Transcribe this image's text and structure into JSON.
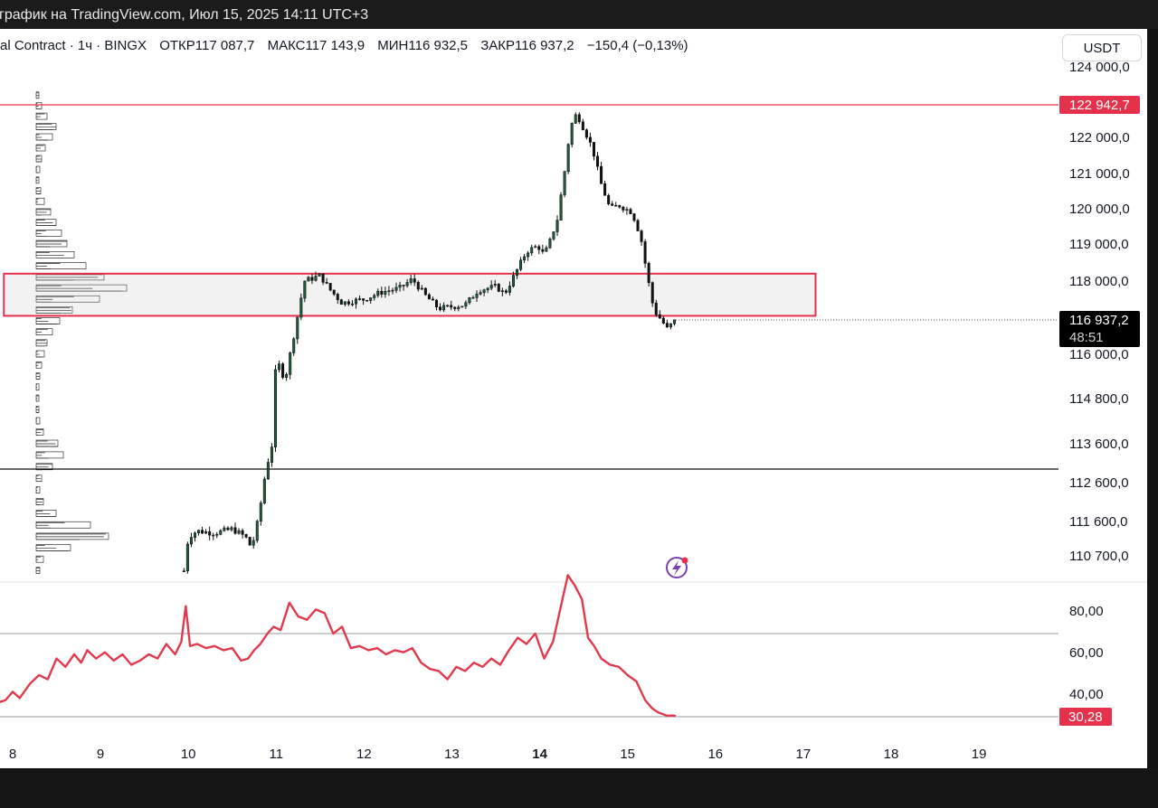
{
  "window": {
    "title": "график на TradingView.com, Июл 15, 2025 14:11 UTC+3"
  },
  "legend": {
    "symbol": "al Contract · 1ч · BINGX",
    "open_label": "ОТКР",
    "open": "117 087,7",
    "high_label": "МАКС",
    "high": "117 143,9",
    "low_label": "МИН",
    "low": "116 932,5",
    "close_label": "ЗАКР",
    "close": "116 937,2",
    "change": "−150,4 (−0,13%)"
  },
  "currency_button": "USDT",
  "colors": {
    "price_box": "#e5314b",
    "rsi_line": "#e03a4e",
    "candle_up": "#1f5f3c",
    "candle_down": "#111111"
  },
  "icons": {
    "alert": "lightning-alert-icon"
  },
  "chart_data": [
    {
      "type": "candlestick",
      "ylim": [
        110100,
        124300
      ],
      "price_ticks": [
        "124 000,0",
        "122 000,0",
        "121 000,0",
        "120 000,0",
        "119 000,0",
        "118 000,0",
        "116 000,0",
        "114 800,0",
        "113 600,0",
        "112 600,0",
        "111 600,0",
        "110 700,0"
      ],
      "price_tick_values": [
        124000,
        122000,
        121000,
        120000,
        119000,
        118000,
        116000,
        114800,
        113600,
        112600,
        111600,
        110700
      ],
      "x_ticks": [
        {
          "label": "8",
          "day": 8
        },
        {
          "label": "9",
          "day": 9
        },
        {
          "label": "10",
          "day": 10
        },
        {
          "label": "11",
          "day": 11
        },
        {
          "label": "12",
          "day": 12
        },
        {
          "label": "13",
          "day": 13
        },
        {
          "label": "14",
          "day": 14,
          "bold": true
        },
        {
          "label": "15",
          "day": 15
        },
        {
          "label": "16",
          "day": 16
        },
        {
          "label": "17",
          "day": 17
        },
        {
          "label": "18",
          "day": 18
        },
        {
          "label": "19",
          "day": 19
        }
      ],
      "resistance_line": {
        "value": 122942.7,
        "label": "122 942,7"
      },
      "support_line": {
        "value": 112900
      },
      "zone": {
        "top": 118200,
        "bottom": 117050,
        "x_start_day": 7.9,
        "x_end_day": 17.14
      },
      "last_price": {
        "value": 116937.2,
        "label": "116 937,2",
        "countdown": "48:51"
      },
      "price_path": [
        [
          9.95,
          110300
        ],
        [
          10.0,
          111200
        ],
        [
          10.1,
          111350
        ],
        [
          10.3,
          111300
        ],
        [
          10.5,
          111400
        ],
        [
          10.65,
          111200
        ],
        [
          10.72,
          110900
        ],
        [
          10.8,
          111700
        ],
        [
          10.88,
          112900
        ],
        [
          10.95,
          113550
        ],
        [
          11.0,
          115900
        ],
        [
          11.1,
          115300
        ],
        [
          11.2,
          116500
        ],
        [
          11.32,
          118000
        ],
        [
          11.5,
          118150
        ],
        [
          11.6,
          117800
        ],
        [
          11.75,
          117400
        ],
        [
          11.85,
          117450
        ],
        [
          12.0,
          117500
        ],
        [
          12.2,
          117700
        ],
        [
          12.4,
          117800
        ],
        [
          12.55,
          118050
        ],
        [
          12.7,
          117600
        ],
        [
          12.85,
          117250
        ],
        [
          13.0,
          117300
        ],
        [
          13.15,
          117350
        ],
        [
          13.3,
          117750
        ],
        [
          13.5,
          117850
        ],
        [
          13.6,
          117650
        ],
        [
          13.72,
          118200
        ],
        [
          13.85,
          118800
        ],
        [
          13.98,
          118950
        ],
        [
          14.05,
          118700
        ],
        [
          14.12,
          119100
        ],
        [
          14.2,
          119700
        ],
        [
          14.28,
          121000
        ],
        [
          14.35,
          122300
        ],
        [
          14.42,
          122700
        ],
        [
          14.5,
          122250
        ],
        [
          14.6,
          121700
        ],
        [
          14.7,
          120700
        ],
        [
          14.8,
          120000
        ],
        [
          14.9,
          120100
        ],
        [
          15.05,
          119900
        ],
        [
          15.15,
          119200
        ],
        [
          15.22,
          118200
        ],
        [
          15.3,
          117200
        ],
        [
          15.38,
          116950
        ],
        [
          15.45,
          116700
        ],
        [
          15.55,
          116937
        ]
      ],
      "volume_profile_rows": [
        [
          123200,
          3
        ],
        [
          122900,
          6
        ],
        [
          122600,
          12
        ],
        [
          122300,
          22
        ],
        [
          122000,
          18
        ],
        [
          121700,
          10
        ],
        [
          121400,
          6
        ],
        [
          121100,
          4
        ],
        [
          120800,
          3
        ],
        [
          120500,
          5
        ],
        [
          120200,
          9
        ],
        [
          119900,
          16
        ],
        [
          119600,
          22
        ],
        [
          119300,
          28
        ],
        [
          119000,
          34
        ],
        [
          118700,
          42
        ],
        [
          118400,
          55
        ],
        [
          118100,
          75
        ],
        [
          117800,
          100
        ],
        [
          117500,
          70
        ],
        [
          117200,
          40
        ],
        [
          116900,
          26
        ],
        [
          116600,
          18
        ],
        [
          116300,
          12
        ],
        [
          116000,
          9
        ],
        [
          115700,
          6
        ],
        [
          115400,
          4
        ],
        [
          115100,
          3
        ],
        [
          114800,
          3
        ],
        [
          114500,
          3
        ],
        [
          114200,
          4
        ],
        [
          113900,
          8
        ],
        [
          113600,
          24
        ],
        [
          113300,
          30
        ],
        [
          113000,
          18
        ],
        [
          112700,
          6
        ],
        [
          112400,
          4
        ],
        [
          112100,
          8
        ],
        [
          111800,
          22
        ],
        [
          111500,
          60
        ],
        [
          111200,
          80
        ],
        [
          110900,
          38
        ],
        [
          110600,
          8
        ],
        [
          110300,
          4
        ]
      ]
    },
    {
      "type": "line",
      "ylim": [
        27,
        92
      ],
      "y_ticks": [
        "80,00",
        "60,00",
        "40,00"
      ],
      "y_tick_values": [
        80,
        60,
        40
      ],
      "levels": [
        70,
        30
      ],
      "last_value": {
        "value": 30.28,
        "label": "30,28"
      },
      "x": [
        7.85,
        7.92,
        8.0,
        8.08,
        8.2,
        8.3,
        8.4,
        8.5,
        8.6,
        8.7,
        8.78,
        8.85,
        8.95,
        9.05,
        9.15,
        9.25,
        9.35,
        9.45,
        9.55,
        9.65,
        9.75,
        9.85,
        9.92,
        9.97,
        10.02,
        10.1,
        10.2,
        10.3,
        10.4,
        10.5,
        10.6,
        10.68,
        10.75,
        10.82,
        10.9,
        10.97,
        11.05,
        11.15,
        11.25,
        11.35,
        11.45,
        11.55,
        11.65,
        11.75,
        11.85,
        11.95,
        12.05,
        12.15,
        12.25,
        12.35,
        12.45,
        12.55,
        12.65,
        12.75,
        12.85,
        12.95,
        13.05,
        13.15,
        13.25,
        13.35,
        13.45,
        13.55,
        13.65,
        13.75,
        13.85,
        13.95,
        14.05,
        14.15,
        14.25,
        14.32,
        14.4,
        14.48,
        14.55,
        14.62,
        14.7,
        14.8,
        14.9,
        15.0,
        15.1,
        15.2,
        15.28,
        15.35,
        15.45,
        15.52,
        15.55
      ],
      "values": [
        37,
        38,
        42,
        39,
        46,
        50,
        48,
        58,
        54,
        60,
        56,
        62,
        58,
        61,
        57,
        60,
        55,
        57,
        60,
        58,
        65,
        60,
        66,
        78,
        64,
        65,
        63,
        64,
        62,
        63,
        57,
        58,
        62,
        65,
        70,
        72,
        71,
        79,
        75,
        74,
        77,
        76,
        70,
        72,
        63,
        64,
        62,
        63,
        60,
        62,
        61,
        63,
        56,
        53,
        52,
        48,
        54,
        52,
        56,
        54,
        58,
        55,
        62,
        68,
        65,
        70,
        58,
        66,
        79,
        87,
        84,
        80,
        68,
        64,
        58,
        55,
        54,
        50,
        47,
        38,
        34,
        32,
        30.5,
        30.6,
        30.28
      ]
    }
  ]
}
